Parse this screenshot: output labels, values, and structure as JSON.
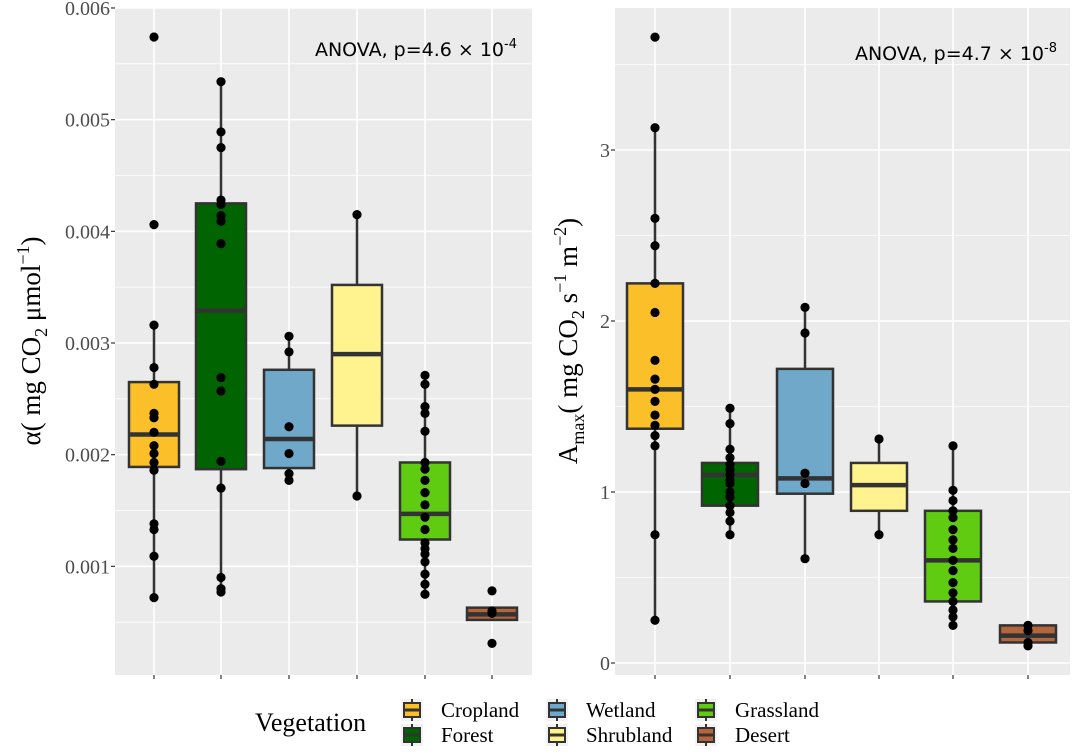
{
  "legend": {
    "title": "Vegetation",
    "position": "bottom"
  },
  "colors": {
    "panel_bg": "#ebebeb",
    "grid": "#ffffff",
    "box_border": "#333333",
    "median": "#333333",
    "point": "#000000"
  },
  "chart_data": [
    {
      "type": "boxplot",
      "id": "alpha",
      "ylabel_main": "α( mg CO",
      "ylabel_sub": "2",
      "ylabel_mid": " μmol",
      "ylabel_sup": "−1",
      "ylabel_end": ")",
      "annotation_main": "ANOVA, p=4.6 × 10",
      "annotation_sup": "-4",
      "ylim": [
        0,
        0.006
      ],
      "y_ticks": [
        {
          "v": 0.001,
          "label": "0.001"
        },
        {
          "v": 0.002,
          "label": "0.002"
        },
        {
          "v": 0.003,
          "label": "0.003"
        },
        {
          "v": 0.004,
          "label": "0.004"
        },
        {
          "v": 0.005,
          "label": "0.005"
        },
        {
          "v": 0.006,
          "label": "0.006"
        }
      ],
      "grid": true,
      "groups": [
        {
          "name": "Cropland",
          "color": "#FBBF2A",
          "q1": 0.00189,
          "median": 0.00218,
          "q3": 0.00265,
          "whisker_low": 0.00072,
          "whisker_high": 0.00316,
          "points": [
            0.00574,
            0.00406,
            0.00316,
            0.00278,
            0.00263,
            0.00237,
            0.00233,
            0.0022,
            0.00208,
            0.00201,
            0.00193,
            0.00186,
            0.00138,
            0.00133,
            0.00109,
            0.00072
          ]
        },
        {
          "name": "Forest",
          "color": "#006400",
          "q1": 0.00187,
          "median": 0.00329,
          "q3": 0.00425,
          "whisker_low": 0.00078,
          "whisker_high": 0.00534,
          "points": [
            0.00534,
            0.00489,
            0.00475,
            0.00428,
            0.00424,
            0.00414,
            0.00409,
            0.00389,
            0.00269,
            0.00257,
            0.00194,
            0.0017,
            0.0009,
            0.0008,
            0.00077
          ]
        },
        {
          "name": "Wetland",
          "color": "#6FA8C8",
          "q1": 0.00188,
          "median": 0.00214,
          "q3": 0.00276,
          "whisker_low": 0.00177,
          "whisker_high": 0.00306,
          "points": [
            0.00306,
            0.00292,
            0.00225,
            0.00201,
            0.00183,
            0.00177
          ]
        },
        {
          "name": "Shrubland",
          "color": "#FFF38F",
          "q1": 0.00226,
          "median": 0.0029,
          "q3": 0.00352,
          "whisker_low": 0.00163,
          "whisker_high": 0.00415,
          "points": [
            0.00415,
            0.00163
          ]
        },
        {
          "name": "Grassland",
          "color": "#5FCC12",
          "q1": 0.00124,
          "median": 0.00147,
          "q3": 0.00193,
          "whisker_low": 0.00075,
          "whisker_high": 0.00271,
          "points": [
            0.00271,
            0.00263,
            0.00243,
            0.00237,
            0.00221,
            0.00193,
            0.00187,
            0.00177,
            0.00166,
            0.00155,
            0.00144,
            0.00133,
            0.00121,
            0.00116,
            0.00111,
            0.00104,
            0.00093,
            0.00084,
            0.00075
          ]
        },
        {
          "name": "Desert",
          "color": "#B5653B",
          "q1": 0.00052,
          "median": 0.00057,
          "q3": 0.00063,
          "whisker_low": 0.00052,
          "whisker_high": 0.00063,
          "points": [
            0.00078,
            0.0006,
            0.00058,
            0.00031
          ]
        }
      ]
    },
    {
      "type": "boxplot",
      "id": "amax",
      "ylabel_main": "A",
      "ylabel_sub1": "max",
      "ylabel_mid": "( mg CO",
      "ylabel_sub2": "2",
      "ylabel_mid2": " s",
      "ylabel_sup1": "−1",
      "ylabel_mid3": " m",
      "ylabel_sup2": "−2",
      "ylabel_end": ")",
      "annotation_main": "ANOVA, p=4.7 × 10",
      "annotation_sup": "-8",
      "ylim": [
        0,
        3.7
      ],
      "y_ticks": [
        {
          "v": 0,
          "label": "0"
        },
        {
          "v": 1,
          "label": "1"
        },
        {
          "v": 2,
          "label": "2"
        },
        {
          "v": 3,
          "label": "3"
        }
      ],
      "grid": true,
      "groups": [
        {
          "name": "Cropland",
          "color": "#FBBF2A",
          "q1": 1.37,
          "median": 1.6,
          "q3": 2.22,
          "whisker_low": 0.25,
          "whisker_high": 3.13,
          "points": [
            3.66,
            3.13,
            2.6,
            2.44,
            2.22,
            2.05,
            1.77,
            1.66,
            1.6,
            1.53,
            1.45,
            1.39,
            1.33,
            1.27,
            0.75,
            0.25
          ]
        },
        {
          "name": "Forest",
          "color": "#006400",
          "q1": 0.92,
          "median": 1.1,
          "q3": 1.17,
          "whisker_low": 0.75,
          "whisker_high": 1.49,
          "points": [
            1.49,
            1.4,
            1.25,
            1.2,
            1.16,
            1.13,
            1.1,
            1.07,
            1.05,
            1.0,
            0.97,
            0.92,
            0.88,
            0.83,
            0.75
          ]
        },
        {
          "name": "Wetland",
          "color": "#6FA8C8",
          "q1": 0.99,
          "median": 1.08,
          "q3": 1.72,
          "whisker_low": 0.61,
          "whisker_high": 2.08,
          "points": [
            2.08,
            1.93,
            1.11,
            1.05,
            0.61
          ]
        },
        {
          "name": "Shrubland",
          "color": "#FFF38F",
          "q1": 0.89,
          "median": 1.04,
          "q3": 1.17,
          "whisker_low": 0.75,
          "whisker_high": 1.31,
          "points": [
            1.31,
            0.75
          ]
        },
        {
          "name": "Grassland",
          "color": "#5FCC12",
          "q1": 0.36,
          "median": 0.6,
          "q3": 0.89,
          "whisker_low": 0.22,
          "whisker_high": 1.27,
          "points": [
            1.27,
            1.01,
            0.95,
            0.89,
            0.85,
            0.78,
            0.72,
            0.67,
            0.6,
            0.54,
            0.47,
            0.41,
            0.36,
            0.31,
            0.27,
            0.22
          ]
        },
        {
          "name": "Desert",
          "color": "#B5653B",
          "q1": 0.12,
          "median": 0.16,
          "q3": 0.22,
          "whisker_low": 0.12,
          "whisker_high": 0.22,
          "points": [
            0.22,
            0.19,
            0.12,
            0.1
          ]
        }
      ]
    }
  ]
}
